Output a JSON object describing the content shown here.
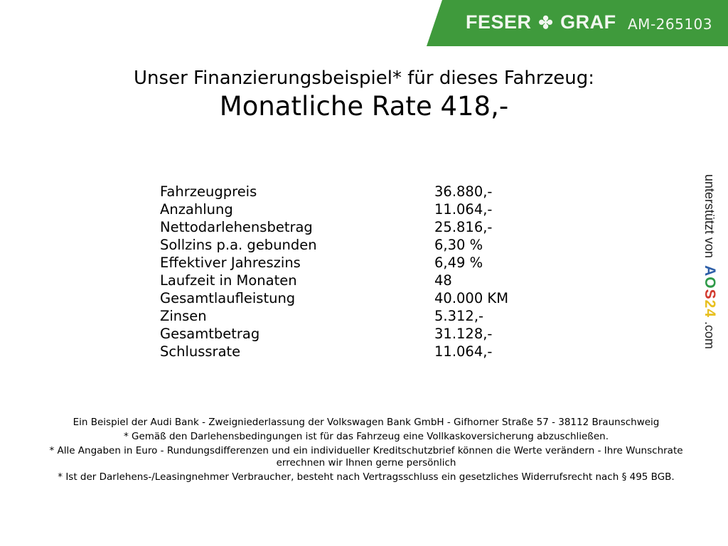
{
  "header": {
    "brand_left": "FESER",
    "brand_right": "GRAF",
    "brand_icon": "clover-icon",
    "vehicle_code": "AM-265103",
    "brand_color": "#3f9a3c"
  },
  "title": {
    "line1": "Unser Finanzierungsbeispiel* für dieses Fahrzeug:",
    "line2": "Monatliche Rate 418,-"
  },
  "details": [
    {
      "label": "Fahrzeugpreis",
      "value": "36.880,-"
    },
    {
      "label": "Anzahlung",
      "value": "11.064,-"
    },
    {
      "label": "Nettodarlehensbetrag",
      "value": "25.816,-"
    },
    {
      "label": "Sollzins p.a. gebunden",
      "value": "6,30 %"
    },
    {
      "label": "Effektiver Jahreszins",
      "value": "6,49 %"
    },
    {
      "label": "Laufzeit in Monaten",
      "value": "48"
    },
    {
      "label": "Gesamtlaufleistung",
      "value": "40.000 KM"
    },
    {
      "label": "Zinsen",
      "value": "5.312,-"
    },
    {
      "label": "Gesamtbetrag",
      "value": "31.128,-"
    },
    {
      "label": "Schlussrate",
      "value": "11.064,-"
    }
  ],
  "side": {
    "prefix": "unterstützt von",
    "logo_letters": [
      "A",
      "O",
      "S",
      "2",
      "4"
    ],
    "logo_colors": [
      "#2e5fa8",
      "#2e9a48",
      "#d23a2e",
      "#e8c020",
      "#e8c020"
    ],
    "suffix": ".com"
  },
  "footer": [
    "Ein Beispiel der Audi Bank - Zweigniederlassung der Volkswagen Bank GmbH - Gifhorner Straße 57 - 38112 Braunschweig",
    "* Gemäß den Darlehensbedingungen ist für das Fahrzeug eine Vollkaskoversicherung abzuschließen.",
    "* Alle Angaben in Euro - Rundungsdifferenzen und ein individueller Kreditschutzbrief können die Werte verändern - Ihre Wunschrate errechnen wir Ihnen gerne persönlich",
    "* Ist der Darlehens-/Leasingnehmer Verbraucher, besteht nach Vertragsschluss ein gesetzliches Widerrufsrecht nach § 495 BGB."
  ]
}
